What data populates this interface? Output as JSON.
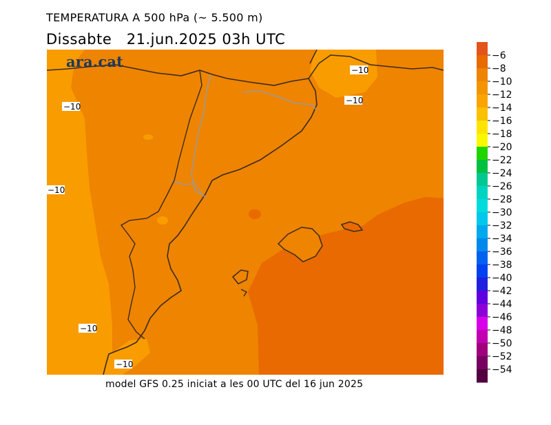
{
  "header": {
    "title": "TEMPERATURA A 500 hPa (~ 5.500 m)",
    "subtitle": "Dissabte   21.jun.2025 03h UTC"
  },
  "brand": "ara.cat",
  "footer": "model GFS 0.25 iniciat a les 00 UTC del 16 jun 2025",
  "colors": {
    "field_warm": "#e86a00",
    "field_mid": "#ee8400",
    "field_cool": "#f99c00",
    "coast": "#3a2a1a",
    "border": "#9a9a9a"
  },
  "contour_labels": [
    "−10",
    "−10",
    "−10",
    "−10",
    "−10",
    "−10"
  ],
  "legend": {
    "labels": [
      "−6",
      "−8",
      "−10",
      "−12",
      "−14",
      "−16",
      "−18",
      "−20",
      "−22",
      "−24",
      "−26",
      "−28",
      "−30",
      "−32",
      "−34",
      "−36",
      "−38",
      "−40",
      "−42",
      "−44",
      "−46",
      "−48",
      "−50",
      "−52",
      "−54"
    ],
    "colors": [
      "#e2541a",
      "#e86a00",
      "#ee8400",
      "#f49400",
      "#faa400",
      "#fbc000",
      "#fde400",
      "#f8f800",
      "#20d400",
      "#00c040",
      "#00c890",
      "#00d4c0",
      "#00dcdc",
      "#00c8ec",
      "#00a8ec",
      "#0088ec",
      "#0060f0",
      "#0040f0",
      "#2020e0",
      "#6000e0",
      "#8c00d8",
      "#d800e8",
      "#c000b0",
      "#a0007c",
      "#780060",
      "#520040"
    ]
  }
}
